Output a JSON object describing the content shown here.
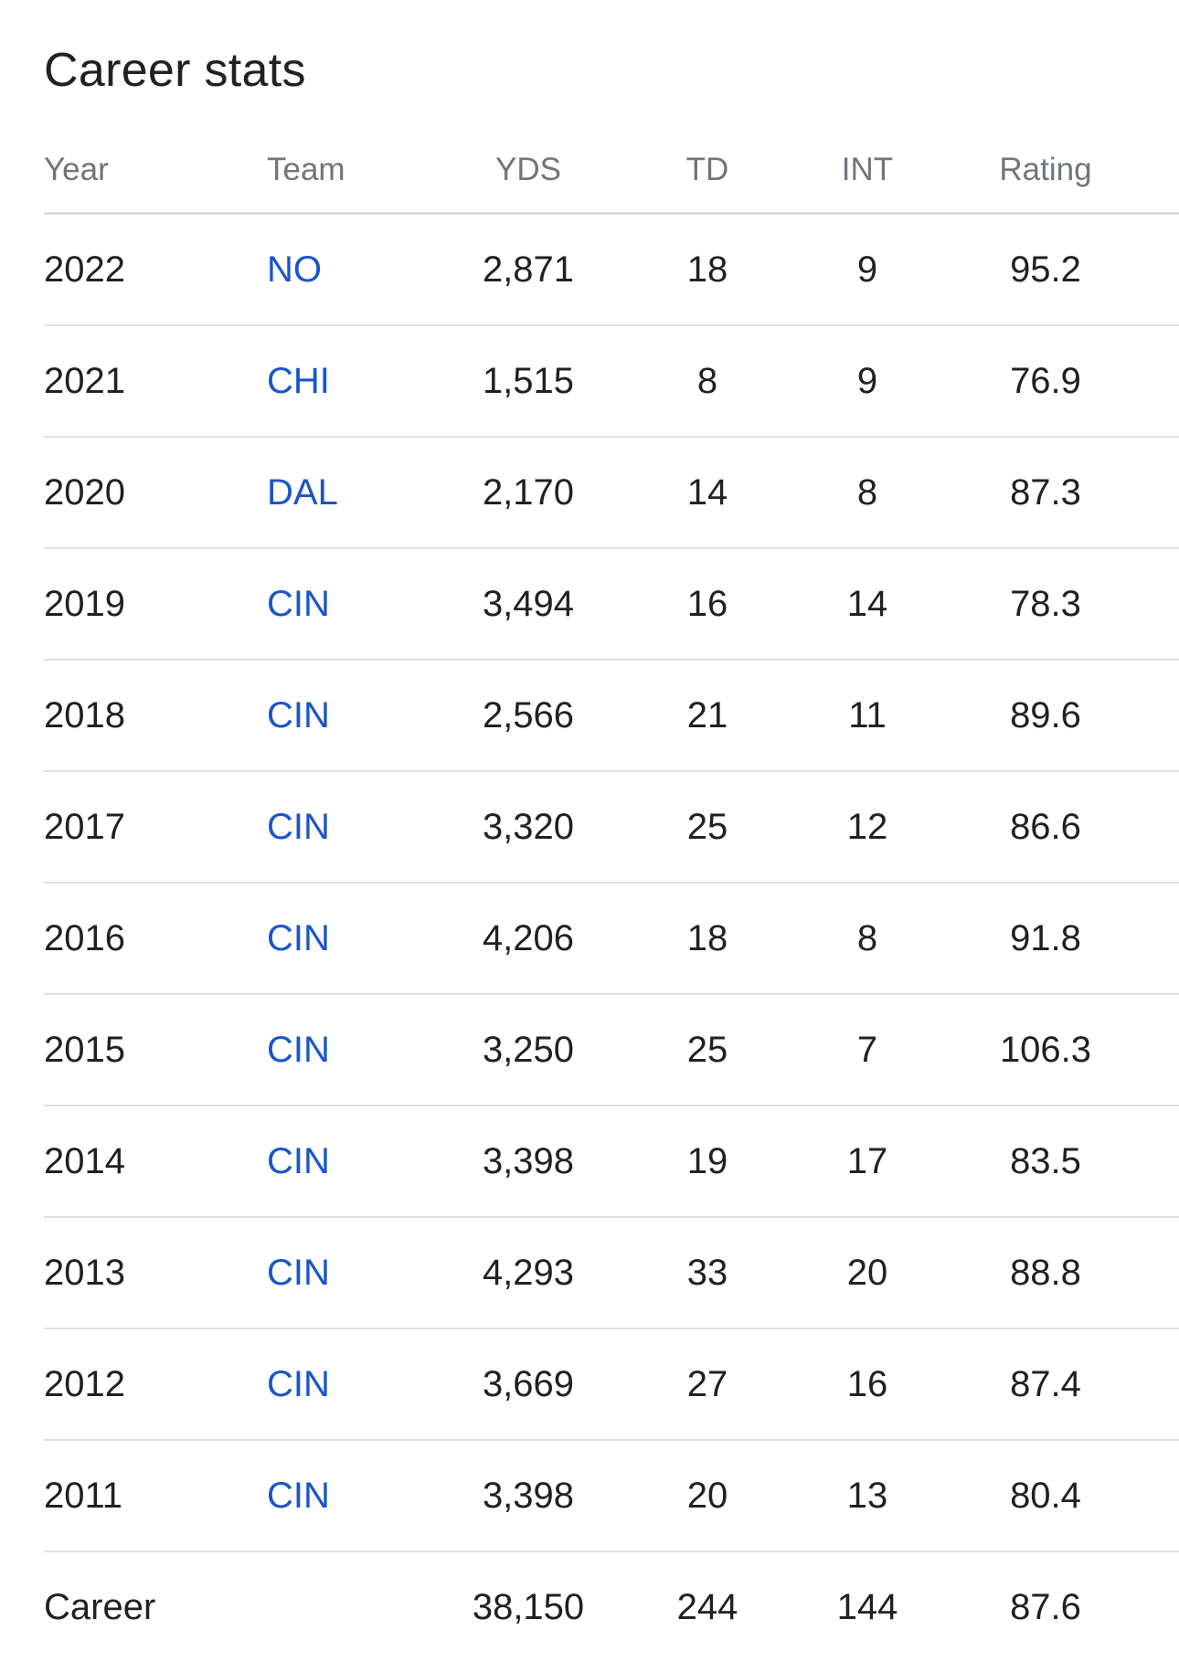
{
  "title": "Career stats",
  "columns": {
    "year": "Year",
    "team": "Team",
    "yds": "YDS",
    "td": "TD",
    "int": "INT",
    "rating": "Rating"
  },
  "rows": [
    {
      "year": "2022",
      "team": "NO",
      "yds": "2,871",
      "td": "18",
      "int": "9",
      "rating": "95.2"
    },
    {
      "year": "2021",
      "team": "CHI",
      "yds": "1,515",
      "td": "8",
      "int": "9",
      "rating": "76.9"
    },
    {
      "year": "2020",
      "team": "DAL",
      "yds": "2,170",
      "td": "14",
      "int": "8",
      "rating": "87.3"
    },
    {
      "year": "2019",
      "team": "CIN",
      "yds": "3,494",
      "td": "16",
      "int": "14",
      "rating": "78.3"
    },
    {
      "year": "2018",
      "team": "CIN",
      "yds": "2,566",
      "td": "21",
      "int": "11",
      "rating": "89.6"
    },
    {
      "year": "2017",
      "team": "CIN",
      "yds": "3,320",
      "td": "25",
      "int": "12",
      "rating": "86.6"
    },
    {
      "year": "2016",
      "team": "CIN",
      "yds": "4,206",
      "td": "18",
      "int": "8",
      "rating": "91.8"
    },
    {
      "year": "2015",
      "team": "CIN",
      "yds": "3,250",
      "td": "25",
      "int": "7",
      "rating": "106.3"
    },
    {
      "year": "2014",
      "team": "CIN",
      "yds": "3,398",
      "td": "19",
      "int": "17",
      "rating": "83.5"
    },
    {
      "year": "2013",
      "team": "CIN",
      "yds": "4,293",
      "td": "33",
      "int": "20",
      "rating": "88.8"
    },
    {
      "year": "2012",
      "team": "CIN",
      "yds": "3,669",
      "td": "27",
      "int": "16",
      "rating": "87.4"
    },
    {
      "year": "2011",
      "team": "CIN",
      "yds": "3,398",
      "td": "20",
      "int": "13",
      "rating": "80.4"
    }
  ],
  "career": {
    "label": "Career",
    "team": "",
    "yds": "38,150",
    "td": "244",
    "int": "144",
    "rating": "87.6"
  },
  "colors": {
    "text": "#202124",
    "header_text": "#70757a",
    "link": "#1a55c9",
    "divider": "#e0e0e0"
  }
}
